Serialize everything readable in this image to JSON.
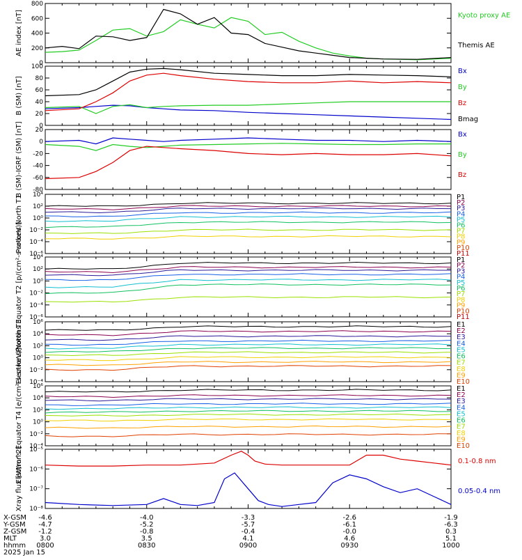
{
  "colors": {
    "black": "#000000",
    "green": "#22cc22",
    "red": "#dd0000",
    "blue": "#0000cc",
    "channels": [
      "#000000",
      "#8b0050",
      "#2a1a99",
      "#1560e6",
      "#10c0d0",
      "#10c060",
      "#9be000",
      "#f0d000",
      "#ffa000",
      "#e04000",
      "#c00000"
    ]
  },
  "chart_data": [
    {
      "type": "line",
      "id": "ae",
      "ylabel": "AE index [nT]",
      "ylim": [
        0,
        800
      ],
      "yticks": [
        "0",
        "200",
        "400",
        "600",
        "800"
      ],
      "legend_placement": "right",
      "series": [
        {
          "name": "Kyoto proxy AE",
          "color_key": "green",
          "x": [
            0,
            5,
            10,
            15,
            20,
            25,
            30,
            35,
            40,
            45,
            50,
            55,
            60,
            65,
            70,
            75,
            80,
            85,
            90,
            95,
            100,
            110,
            120
          ],
          "y": [
            140,
            150,
            170,
            300,
            440,
            460,
            360,
            420,
            580,
            520,
            470,
            610,
            560,
            380,
            410,
            290,
            200,
            130,
            90,
            60,
            50,
            40,
            60
          ]
        },
        {
          "name": "Themis AE",
          "color_key": "black",
          "x": [
            0,
            5,
            10,
            15,
            20,
            25,
            30,
            35,
            40,
            45,
            50,
            55,
            60,
            65,
            70,
            75,
            80,
            85,
            90,
            95,
            100,
            110,
            120
          ],
          "y": [
            200,
            220,
            190,
            360,
            350,
            300,
            340,
            720,
            660,
            520,
            610,
            400,
            380,
            260,
            210,
            160,
            130,
            100,
            70,
            60,
            50,
            45,
            70
          ]
        }
      ]
    },
    {
      "type": "line",
      "id": "bsm",
      "ylabel": "B (SM) [nT]",
      "ylim": [
        0,
        100
      ],
      "yticks": [
        "0",
        "20",
        "40",
        "60",
        "80",
        "100"
      ],
      "legend_placement": "right",
      "series": [
        {
          "name": "Bx",
          "color_key": "blue",
          "x": [
            0,
            10,
            15,
            20,
            25,
            30,
            35,
            40,
            50,
            60,
            70,
            80,
            90,
            100,
            110,
            120
          ],
          "y": [
            28,
            30,
            32,
            34,
            33,
            30,
            28,
            26,
            25,
            22,
            20,
            18,
            16,
            14,
            12,
            10
          ]
        },
        {
          "name": "By",
          "color_key": "green",
          "x": [
            0,
            10,
            15,
            20,
            25,
            30,
            35,
            40,
            50,
            60,
            70,
            80,
            90,
            100,
            110,
            120
          ],
          "y": [
            30,
            32,
            20,
            32,
            35,
            30,
            32,
            33,
            34,
            34,
            36,
            38,
            40,
            40,
            40,
            40
          ]
        },
        {
          "name": "Bz",
          "color_key": "red",
          "x": [
            0,
            10,
            15,
            20,
            25,
            30,
            35,
            40,
            50,
            60,
            70,
            80,
            90,
            100,
            110,
            120
          ],
          "y": [
            25,
            28,
            40,
            55,
            75,
            85,
            88,
            84,
            78,
            74,
            72,
            72,
            75,
            72,
            74,
            72
          ]
        },
        {
          "name": "Bmag",
          "color_key": "black",
          "x": [
            0,
            10,
            15,
            20,
            25,
            30,
            35,
            40,
            50,
            60,
            70,
            80,
            90,
            100,
            110,
            120
          ],
          "y": [
            50,
            52,
            60,
            75,
            90,
            95,
            96,
            94,
            88,
            86,
            84,
            84,
            86,
            85,
            84,
            82
          ]
        }
      ]
    },
    {
      "type": "line",
      "id": "bigrf",
      "ylabel": "B (SM)-IGRF (SM) [nT]",
      "ylim": [
        -80,
        20
      ],
      "yticks": [
        "-80",
        "-60",
        "-40",
        "-20",
        "0",
        "20"
      ],
      "legend_placement": "right",
      "series": [
        {
          "name": "Bx",
          "color_key": "blue",
          "x": [
            0,
            10,
            15,
            20,
            25,
            30,
            35,
            40,
            50,
            60,
            70,
            80,
            90,
            100,
            110,
            120
          ],
          "y": [
            0,
            2,
            -4,
            6,
            4,
            2,
            0,
            2,
            4,
            6,
            4,
            2,
            2,
            0,
            2,
            0
          ]
        },
        {
          "name": "By",
          "color_key": "green",
          "x": [
            0,
            10,
            15,
            20,
            25,
            30,
            35,
            40,
            50,
            60,
            70,
            80,
            90,
            100,
            110,
            120
          ],
          "y": [
            -5,
            -8,
            -15,
            -5,
            -8,
            -10,
            -8,
            -6,
            -5,
            -4,
            -3,
            -4,
            -5,
            -5,
            -4,
            -4
          ]
        },
        {
          "name": "Bz",
          "color_key": "red",
          "x": [
            0,
            10,
            15,
            20,
            25,
            30,
            35,
            40,
            50,
            60,
            70,
            80,
            90,
            100,
            110,
            120
          ],
          "y": [
            -62,
            -60,
            -50,
            -35,
            -15,
            -8,
            -10,
            -12,
            -15,
            -20,
            -22,
            -20,
            -22,
            -22,
            -20,
            -24
          ]
        }
      ]
    },
    {
      "type": "line",
      "id": "pn",
      "ylabel": "Protons North T1",
      "ylog": true,
      "ylim": [
        -6,
        4
      ],
      "yticks": [
        "10⁻⁶",
        "10⁻⁴",
        "10⁻²",
        "10⁰",
        "10²",
        "10⁴"
      ],
      "legend_placement": "right",
      "levels": [
        {
          "name": "P1",
          "base": 2.0,
          "bump": 0.5
        },
        {
          "name": "P2",
          "base": 1.5,
          "bump": 0.5
        },
        {
          "name": "P3",
          "base": 1.0,
          "bump": 0.6
        },
        {
          "name": "P4",
          "base": 0.3,
          "bump": 0.6
        },
        {
          "name": "P5",
          "base": -0.5,
          "bump": 0.7
        },
        {
          "name": "P6",
          "base": -1.5,
          "bump": 0.8
        },
        {
          "name": "P7",
          "base": -2.6,
          "bump": 0.6
        },
        {
          "name": "P8",
          "base": -3.5,
          "bump": 0.4
        },
        {
          "name": "P9",
          "base": null,
          "bump": 0
        },
        {
          "name": "P10",
          "base": null,
          "bump": 0
        },
        {
          "name": "P11",
          "base": null,
          "bump": 0
        }
      ]
    },
    {
      "type": "line",
      "id": "pe",
      "ylabel": "Protons Equator T2 [p/(cm²-s-sr-keV)]",
      "ylog": true,
      "ylim": [
        -6,
        4
      ],
      "yticks": [
        "10⁻⁶",
        "10⁻⁴",
        "10⁻²",
        "10⁰",
        "10²",
        "10⁴"
      ],
      "legend_placement": "right",
      "levels": [
        {
          "name": "P1",
          "base": 2.0,
          "bump": 1.0
        },
        {
          "name": "P2",
          "base": 1.5,
          "bump": 0.8
        },
        {
          "name": "P3",
          "base": 1.0,
          "bump": 0.8
        },
        {
          "name": "P4",
          "base": 0.2,
          "bump": 0.9
        },
        {
          "name": "P5",
          "base": -1.0,
          "bump": 1.2
        },
        {
          "name": "P6",
          "base": -2.0,
          "bump": 1.4
        },
        {
          "name": "P7",
          "base": -3.5,
          "bump": 0.8
        },
        {
          "name": "P8",
          "base": null,
          "bump": 0
        },
        {
          "name": "P9",
          "base": null,
          "bump": 0
        },
        {
          "name": "P10",
          "base": null,
          "bump": 0
        },
        {
          "name": "P11",
          "base": null,
          "bump": 0
        }
      ]
    },
    {
      "type": "line",
      "id": "en",
      "ylabel": "Electrons North T3",
      "ylog": true,
      "ylim": [
        -4,
        6
      ],
      "yticks": [
        "10⁻⁴",
        "10⁻²",
        "10⁰",
        "10²",
        "10⁴",
        "10⁶"
      ],
      "legend_placement": "right",
      "levels": [
        {
          "name": "E1",
          "base": 4.6,
          "bump": 0.6
        },
        {
          "name": "E2",
          "base": 3.8,
          "bump": 0.6
        },
        {
          "name": "E3",
          "base": 3.0,
          "bump": 0.6
        },
        {
          "name": "E4",
          "base": 2.2,
          "bump": 0.6
        },
        {
          "name": "E5",
          "base": 1.6,
          "bump": 0.6
        },
        {
          "name": "E6",
          "base": 1.0,
          "bump": 0.6
        },
        {
          "name": "E7",
          "base": 0.4,
          "bump": 0.5
        },
        {
          "name": "E8",
          "base": -0.4,
          "bump": 0.5
        },
        {
          "name": "E9",
          "base": -1.2,
          "bump": 0.5
        },
        {
          "name": "E10",
          "base": -2.0,
          "bump": 0.6
        }
      ]
    },
    {
      "type": "line",
      "id": "ee",
      "ylabel": "Electrons Equator T4 [e/(cm²-s-sr-keV)]",
      "ylog": true,
      "ylim": [
        -4,
        6
      ],
      "yticks": [
        "10⁻⁴",
        "10⁻²",
        "10⁰",
        "10²",
        "10⁴",
        "10⁶"
      ],
      "legend_placement": "right",
      "levels": [
        {
          "name": "E1",
          "base": 5.0,
          "bump": 0.3
        },
        {
          "name": "E2",
          "base": 4.2,
          "bump": 0.2
        },
        {
          "name": "E3",
          "base": 3.6,
          "bump": 0.2
        },
        {
          "name": "E4",
          "base": 2.8,
          "bump": 0.2
        },
        {
          "name": "E5",
          "base": 2.2,
          "bump": 0.2
        },
        {
          "name": "E6",
          "base": 1.6,
          "bump": 0.2
        },
        {
          "name": "E7",
          "base": 1.0,
          "bump": 0.2
        },
        {
          "name": "E8",
          "base": 0.2,
          "bump": 0.2
        },
        {
          "name": "E9",
          "base": -1.0,
          "bump": 0.2
        },
        {
          "name": "E10",
          "base": -2.4,
          "bump": 0.3
        }
      ]
    },
    {
      "type": "line",
      "id": "xray",
      "ylabel": "Xray flux [W/m^2]",
      "ylog": true,
      "ylim": [
        -8,
        -5
      ],
      "yticks": [
        "10⁻⁸",
        "10⁻⁷",
        "10⁻⁶",
        "10⁻⁵"
      ],
      "legend_placement": "right",
      "series": [
        {
          "name": "0.1-0.8 nm",
          "color_key": "red",
          "x": [
            0,
            10,
            20,
            30,
            40,
            50,
            55,
            58,
            60,
            62,
            65,
            70,
            80,
            90,
            95,
            100,
            105,
            110,
            115,
            120
          ],
          "y": [
            -5.8,
            -5.85,
            -5.85,
            -5.8,
            -5.8,
            -5.7,
            -5.3,
            -5.1,
            -5.3,
            -5.6,
            -5.75,
            -5.8,
            -5.8,
            -5.8,
            -5.3,
            -5.3,
            -5.5,
            -5.6,
            -5.7,
            -5.8
          ]
        },
        {
          "name": "0.05-0.4 nm",
          "color_key": "blue",
          "x": [
            0,
            10,
            20,
            30,
            35,
            40,
            45,
            50,
            53,
            56,
            60,
            63,
            66,
            70,
            75,
            80,
            85,
            90,
            95,
            100,
            105,
            110,
            115,
            120
          ],
          "y": [
            -7.7,
            -7.8,
            -7.85,
            -7.8,
            -7.5,
            -7.8,
            -7.85,
            -7.7,
            -6.5,
            -6.2,
            -7.0,
            -7.6,
            -7.8,
            -7.9,
            -7.8,
            -7.7,
            -6.7,
            -6.3,
            -6.5,
            -6.9,
            -7.2,
            -7.0,
            -7.4,
            -7.8
          ]
        }
      ]
    }
  ],
  "ephemeris": {
    "rows": [
      {
        "label": "X-GSM",
        "values": [
          "-4.6",
          "-4.0",
          "-3.3",
          "-2.6",
          "-1.9"
        ]
      },
      {
        "label": "Y-GSM",
        "values": [
          "-4.7",
          "-5.2",
          "-5.7",
          "-6.1",
          "-6.3"
        ]
      },
      {
        "label": "Z-GSM",
        "values": [
          "-1.2",
          "-0.8",
          "-0.4",
          "-0.0",
          "0.3"
        ]
      },
      {
        "label": "MLT",
        "values": [
          "3.0",
          "3.5",
          "4.1",
          "4.6",
          "5.1"
        ]
      },
      {
        "label": "hhmm",
        "values": [
          "0800",
          "0830",
          "0900",
          "0930",
          "1000"
        ]
      }
    ],
    "date": "2025 Jan 15"
  }
}
